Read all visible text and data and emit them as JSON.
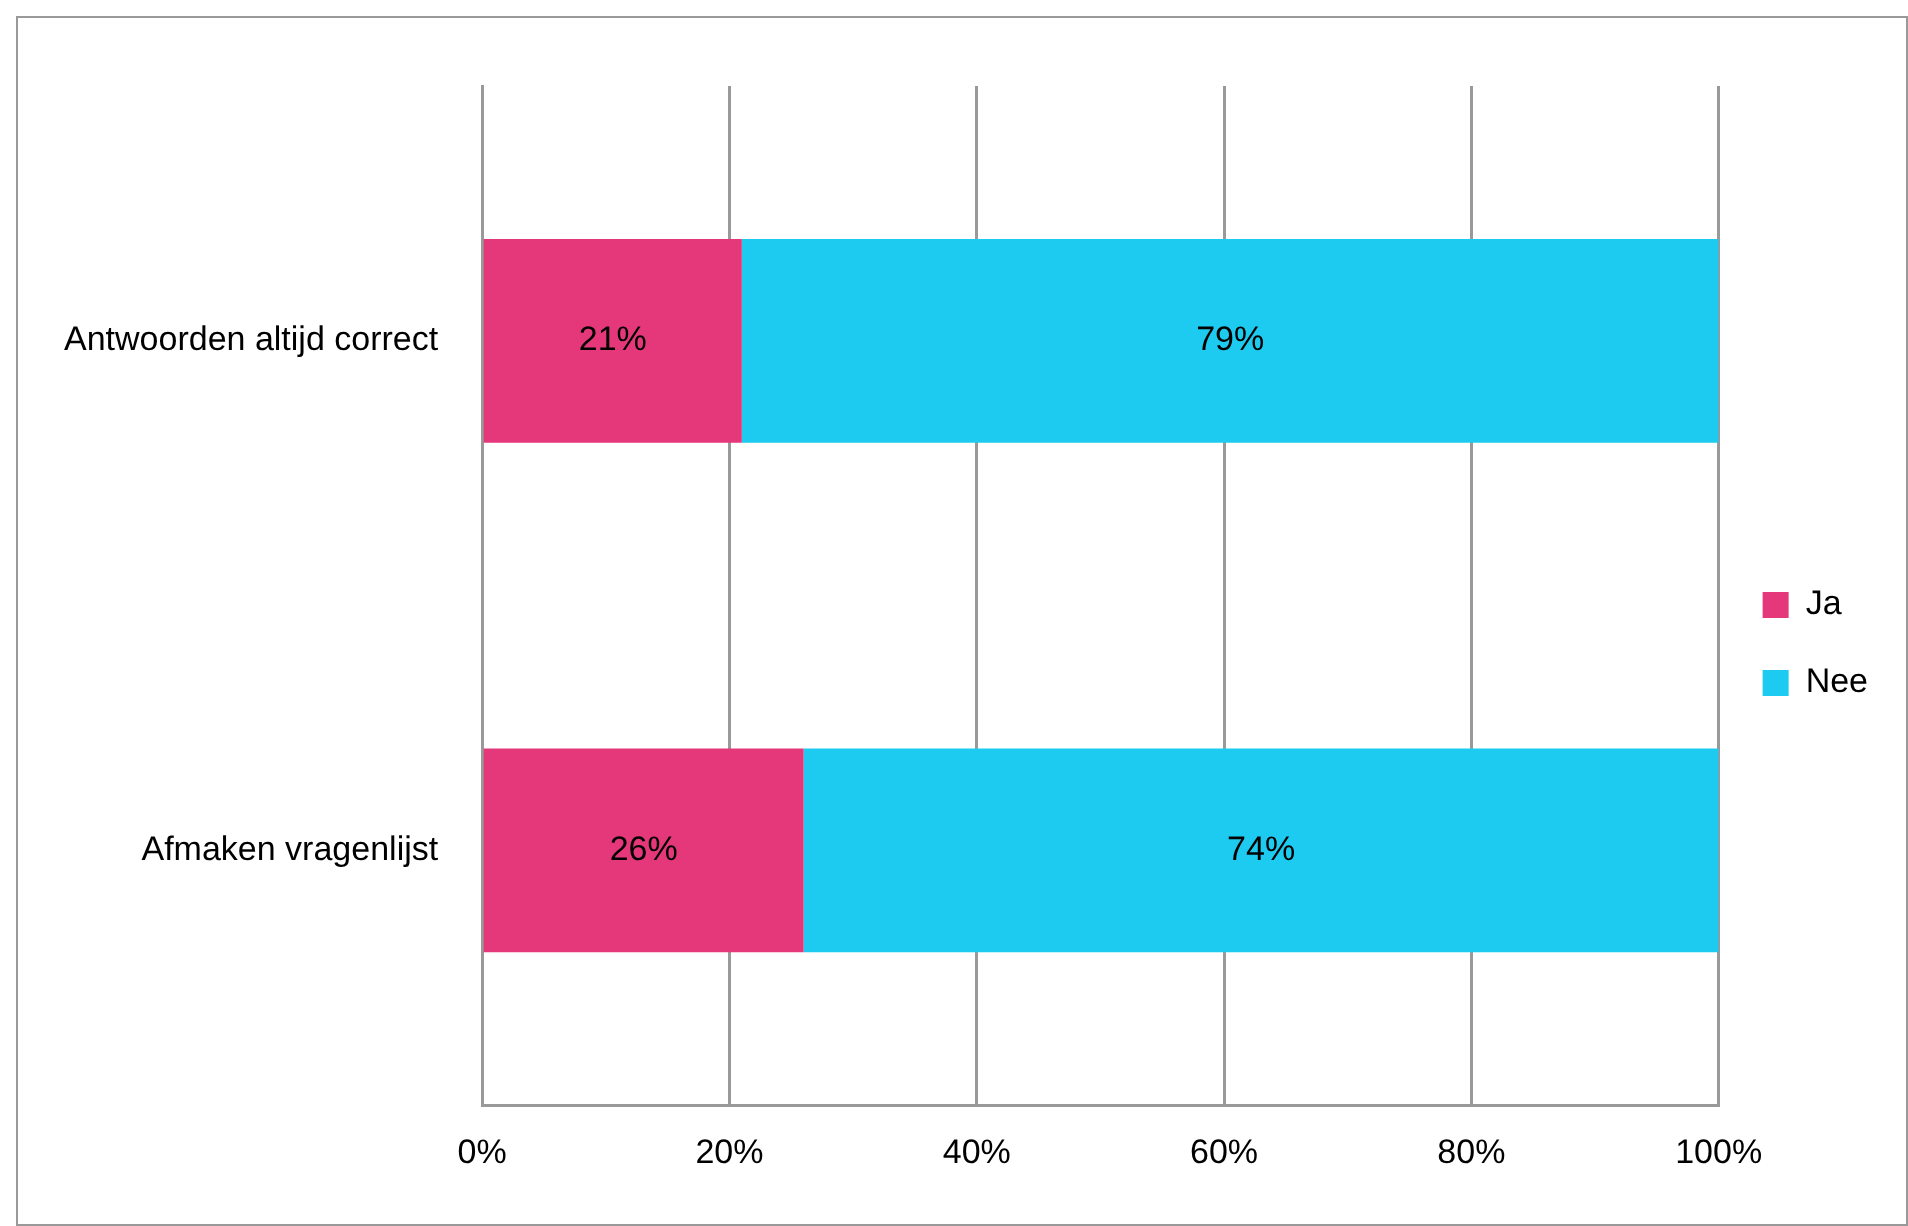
{
  "chart_data": {
    "type": "bar",
    "orientation": "horizontal",
    "stacked": true,
    "categories": [
      "Antwoorden altijd correct",
      "Afmaken vragenlijst"
    ],
    "series": [
      {
        "name": "Ja",
        "color": "#e5387a",
        "values": [
          21,
          26
        ],
        "value_labels": [
          "21%",
          "26%"
        ]
      },
      {
        "name": "Nee",
        "color": "#1ecbf0",
        "values": [
          79,
          74
        ],
        "value_labels": [
          "79%",
          "74%"
        ]
      }
    ],
    "xlim": [
      0,
      100
    ],
    "xticks": [
      {
        "value": 0,
        "label": "0%"
      },
      {
        "value": 20,
        "label": "20%"
      },
      {
        "value": 40,
        "label": "40%"
      },
      {
        "value": 60,
        "label": "60%"
      },
      {
        "value": 80,
        "label": "80%"
      },
      {
        "value": 100,
        "label": "100%"
      }
    ],
    "grid": "x",
    "legend": "right"
  }
}
